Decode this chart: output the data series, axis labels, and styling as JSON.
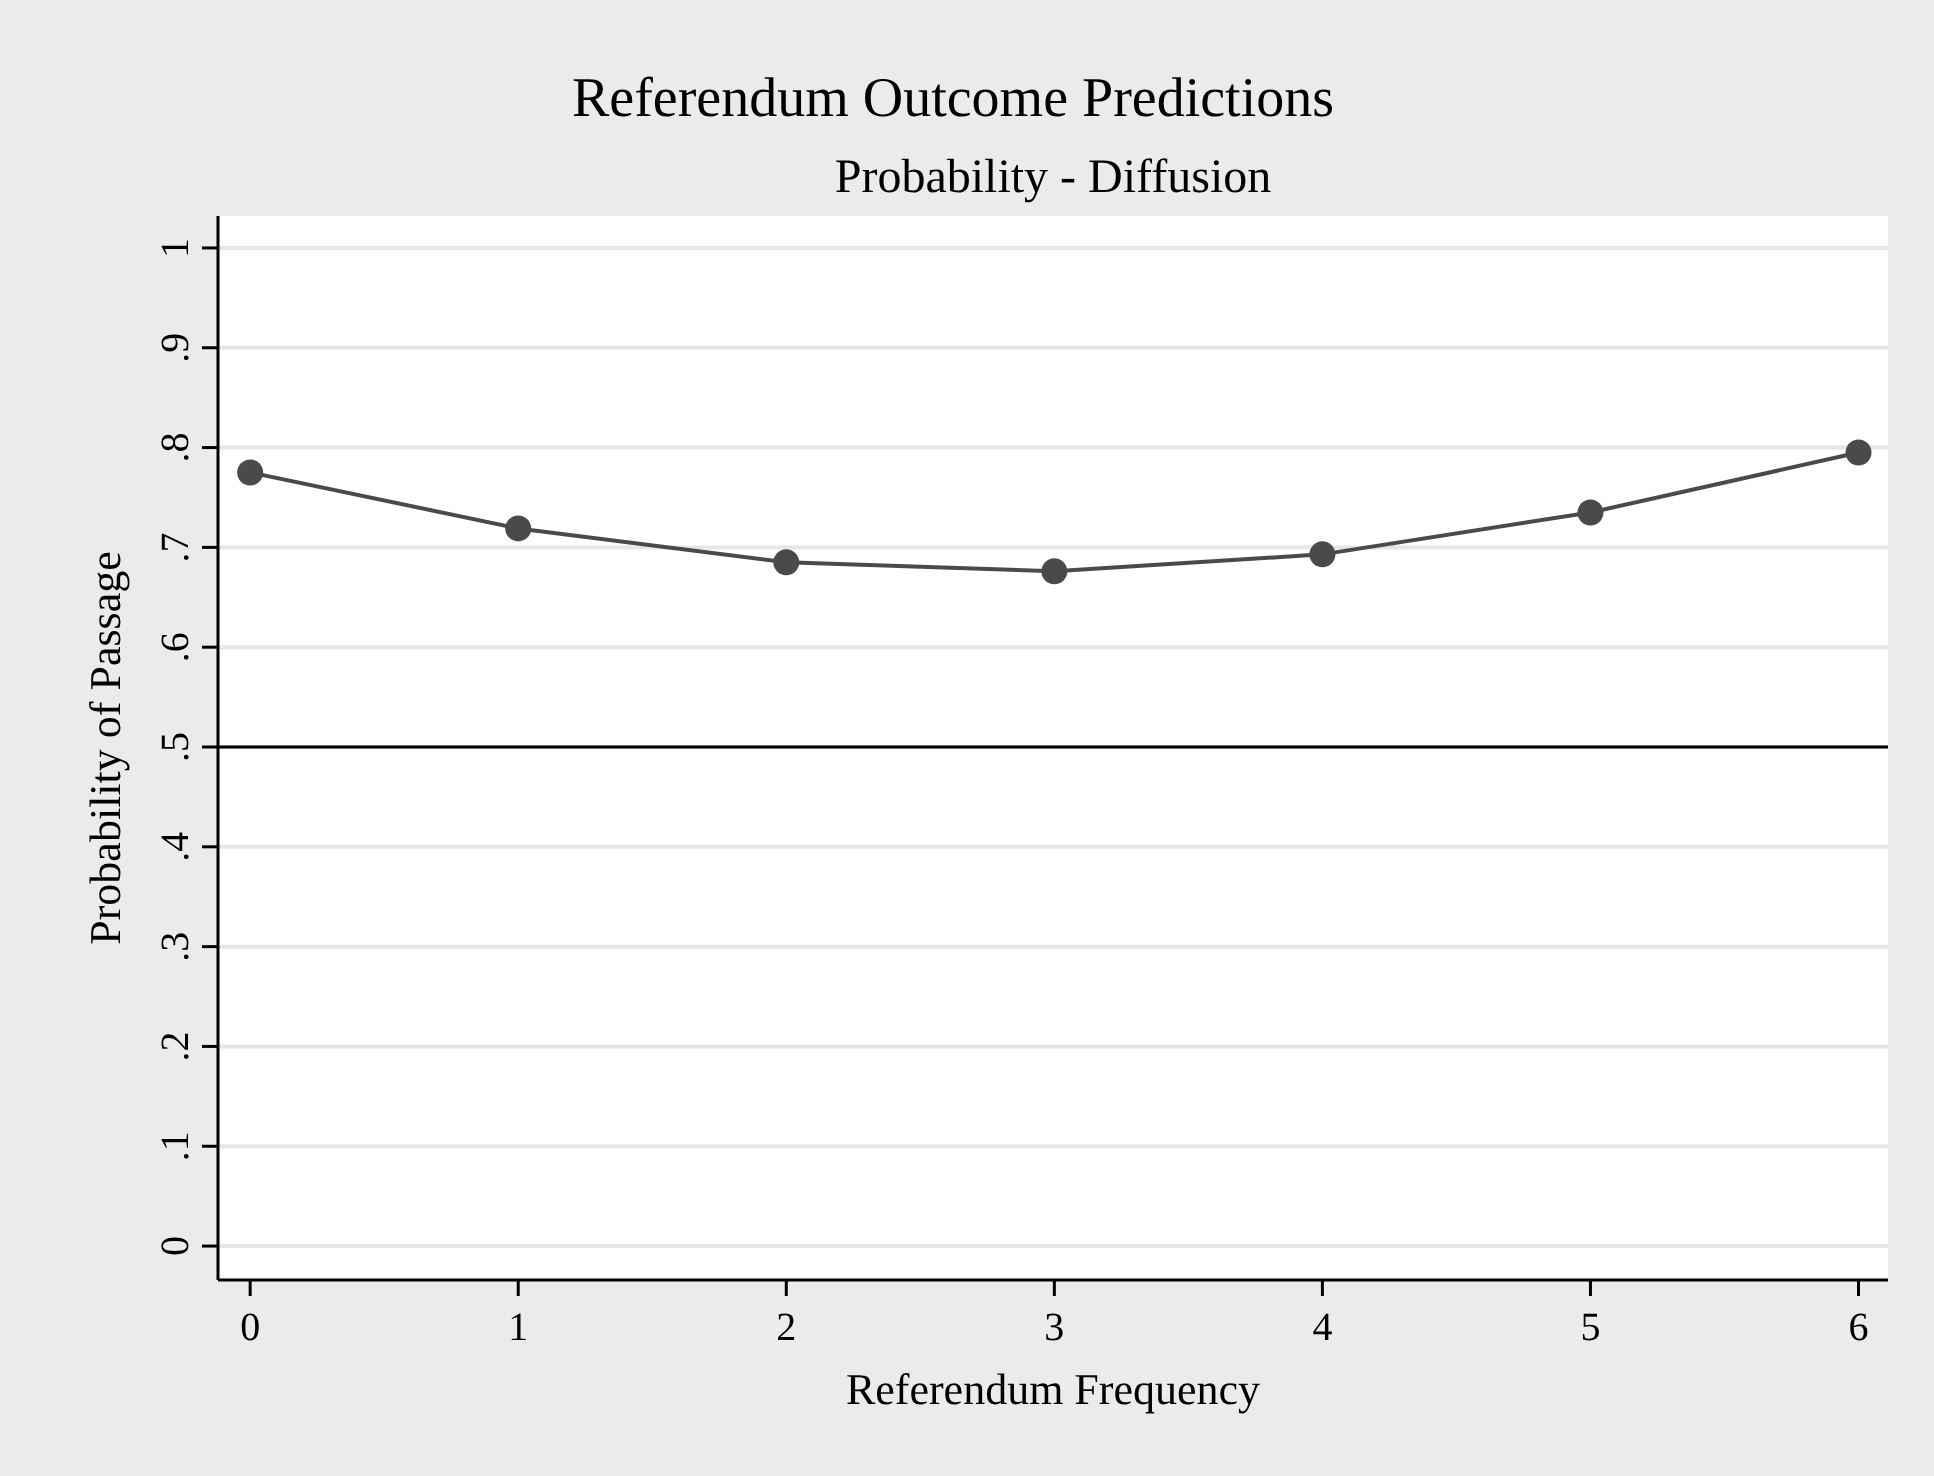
{
  "chart_data": {
    "type": "line",
    "title": "Referendum Outcome Predictions",
    "subtitle": "Probability - Diffusion",
    "xlabel": "Referendum Frequency",
    "ylabel": "Probability of Passage",
    "x": [
      0,
      1,
      2,
      3,
      4,
      5,
      6
    ],
    "series": [
      {
        "color": "#4a4a4a",
        "values": [
          0.775,
          0.719,
          0.685,
          0.676,
          0.693,
          0.735,
          0.795
        ]
      }
    ],
    "marker": "circle",
    "line_style": "solid",
    "xlim": [
      -0.12,
      6.11
    ],
    "xticks": [
      0,
      1,
      2,
      3,
      4,
      5,
      6
    ],
    "ylim": [
      -0.034,
      1.032
    ],
    "yticks": [
      {
        "value": 0,
        "label": "0"
      },
      {
        "value": 0.1,
        "label": ".1"
      },
      {
        "value": 0.2,
        "label": ".2"
      },
      {
        "value": 0.3,
        "label": ".3"
      },
      {
        "value": 0.4,
        "label": ".4"
      },
      {
        "value": 0.5,
        "label": ".5"
      },
      {
        "value": 0.6,
        "label": ".6"
      },
      {
        "value": 0.7,
        "label": ".7"
      },
      {
        "value": 0.8,
        "label": ".8"
      },
      {
        "value": 0.9,
        "label": ".9"
      },
      {
        "value": 1,
        "label": "1"
      }
    ],
    "grid": "y",
    "ref_lines": [
      {
        "axis": "y",
        "value": 0.5,
        "color": "#000000"
      }
    ]
  }
}
